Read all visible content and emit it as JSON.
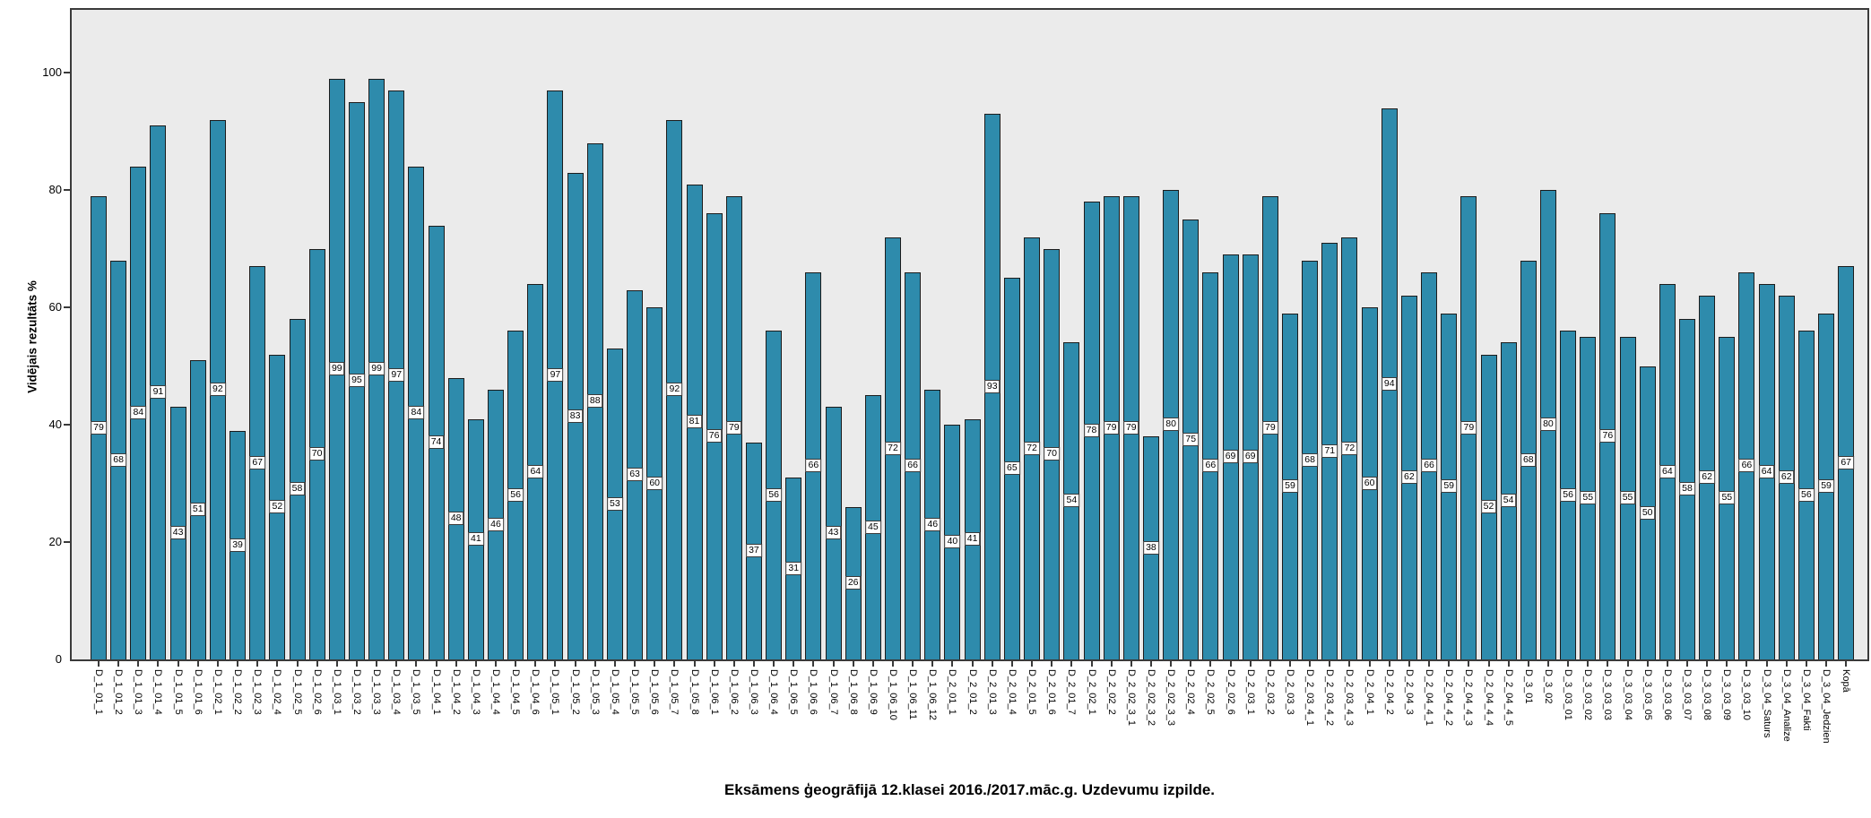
{
  "title": "Eksāmens ģeogrāfijā 12.klasei 2016./2017.māc.g. Uzdevumu izpilde.",
  "chart_data": {
    "type": "bar",
    "title": "Eksāmens ģeogrāfijā 12.klasei 2016./2017.māc.g. Uzdevumu izpilde.",
    "xlabel": "",
    "ylabel": "Vidējais rezultāts %",
    "ylim": [
      0,
      111
    ],
    "y_ticks": [
      0,
      20,
      40,
      60,
      80,
      100
    ],
    "grid": false,
    "legend": "none",
    "bar_color": "#2e8bac",
    "plot_background": "#ebebeb",
    "value_labels_shown": true,
    "categories": [
      "D_1_01_1",
      "D_1_01_2",
      "D_1_01_3",
      "D_1_01_4",
      "D_1_01_5",
      "D_1_01_6",
      "D_1_02_1",
      "D_1_02_2",
      "D_1_02_3",
      "D_1_02_4",
      "D_1_02_5",
      "D_1_02_6",
      "D_1_03_1",
      "D_1_03_2",
      "D_1_03_3",
      "D_1_03_4",
      "D_1_03_5",
      "D_1_04_1",
      "D_1_04_2",
      "D_1_04_3",
      "D_1_04_4",
      "D_1_04_5",
      "D_1_04_6",
      "D_1_05_1",
      "D_1_05_2",
      "D_1_05_3",
      "D_1_05_4",
      "D_1_05_5",
      "D_1_05_6",
      "D_1_05_7",
      "D_1_05_8",
      "D_1_06_1",
      "D_1_06_2",
      "D_1_06_3",
      "D_1_06_4",
      "D_1_06_5",
      "D_1_06_6",
      "D_1_06_7",
      "D_1_06_8",
      "D_1_06_9",
      "D_1_06_10",
      "D_1_06_11",
      "D_1_06_12",
      "D_2_01_1",
      "D_2_01_2",
      "D_2_01_3",
      "D_2_01_4",
      "D_2_01_5",
      "D_2_01_6",
      "D_2_01_7",
      "D_2_02_1",
      "D_2_02_2",
      "D_2_02_3_1",
      "D_2_02_3_2",
      "D_2_02_3_3",
      "D_2_02_4",
      "D_2_02_5",
      "D_2_02_6",
      "D_2_03_1",
      "D_2_03_2",
      "D_2_03_3",
      "D_2_03_4_1",
      "D_2_03_4_2",
      "D_2_03_4_3",
      "D_2_04_1",
      "D_2_04_2",
      "D_2_04_3",
      "D_2_04_4_1",
      "D_2_04_4_2",
      "D_2_04_4_3",
      "D_2_04_4_4",
      "D_2_04_4_5",
      "D_3_01",
      "D_3_02",
      "D_3_03_01",
      "D_3_03_02",
      "D_3_03_03",
      "D_3_03_04",
      "D_3_03_05",
      "D_3_03_06",
      "D_3_03_07",
      "D_3_03_08",
      "D_3_03_09",
      "D_3_03_10",
      "D_3_04_Saturs",
      "D_3_04_Analize",
      "D_3_04_Fakti",
      "D_3_04_Jedzien",
      "Kopā"
    ],
    "values": [
      79,
      68,
      84,
      91,
      43,
      51,
      92,
      39,
      67,
      52,
      58,
      70,
      99,
      95,
      99,
      97,
      84,
      74,
      48,
      41,
      46,
      56,
      64,
      97,
      83,
      88,
      53,
      63,
      60,
      92,
      81,
      76,
      79,
      37,
      56,
      31,
      66,
      43,
      26,
      45,
      72,
      66,
      46,
      40,
      41,
      93,
      65,
      72,
      70,
      54,
      78,
      79,
      79,
      38,
      80,
      75,
      66,
      69,
      69,
      79,
      59,
      68,
      71,
      72,
      60,
      94,
      62,
      66,
      59,
      79,
      52,
      54,
      68,
      80,
      56,
      55,
      76,
      55,
      50,
      64,
      58,
      62,
      55,
      66,
      64,
      62,
      56,
      59,
      67
    ]
  }
}
